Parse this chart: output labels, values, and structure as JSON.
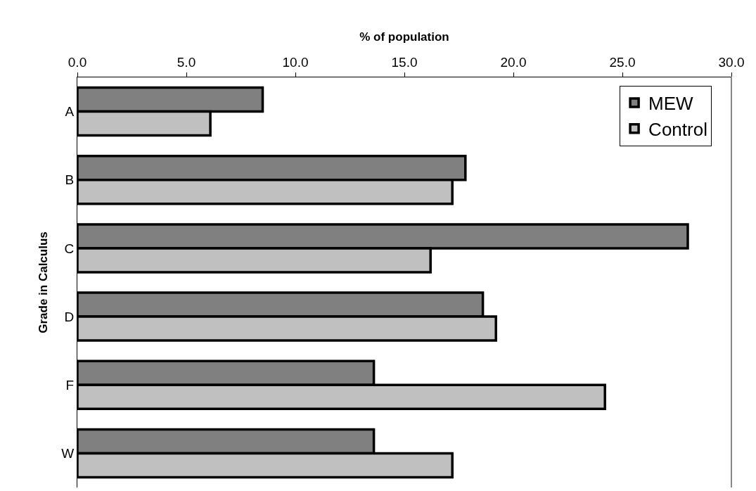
{
  "chart_data": {
    "type": "bar",
    "orientation": "horizontal",
    "xlabel": "% of population",
    "ylabel": "Grade in Calculus",
    "categories": [
      "A",
      "B",
      "C",
      "D",
      "F",
      "W"
    ],
    "series": [
      {
        "name": "MEW",
        "color": "#808080",
        "values": [
          8.5,
          17.8,
          28.0,
          18.6,
          13.6,
          13.6
        ]
      },
      {
        "name": "Control",
        "color": "#c0c0c0",
        "values": [
          6.1,
          17.2,
          16.2,
          19.2,
          24.2,
          17.2
        ]
      }
    ],
    "xlim": [
      0,
      30
    ],
    "xticks": [
      {
        "value": 0,
        "label": "0.0"
      },
      {
        "value": 5,
        "label": "5.0"
      },
      {
        "value": 10,
        "label": "10.0"
      },
      {
        "value": 15,
        "label": "15.0"
      },
      {
        "value": 20,
        "label": "20.0"
      },
      {
        "value": 25,
        "label": "25.0"
      },
      {
        "value": 30,
        "label": "30.0"
      }
    ],
    "grid": false,
    "legend": "top right"
  }
}
